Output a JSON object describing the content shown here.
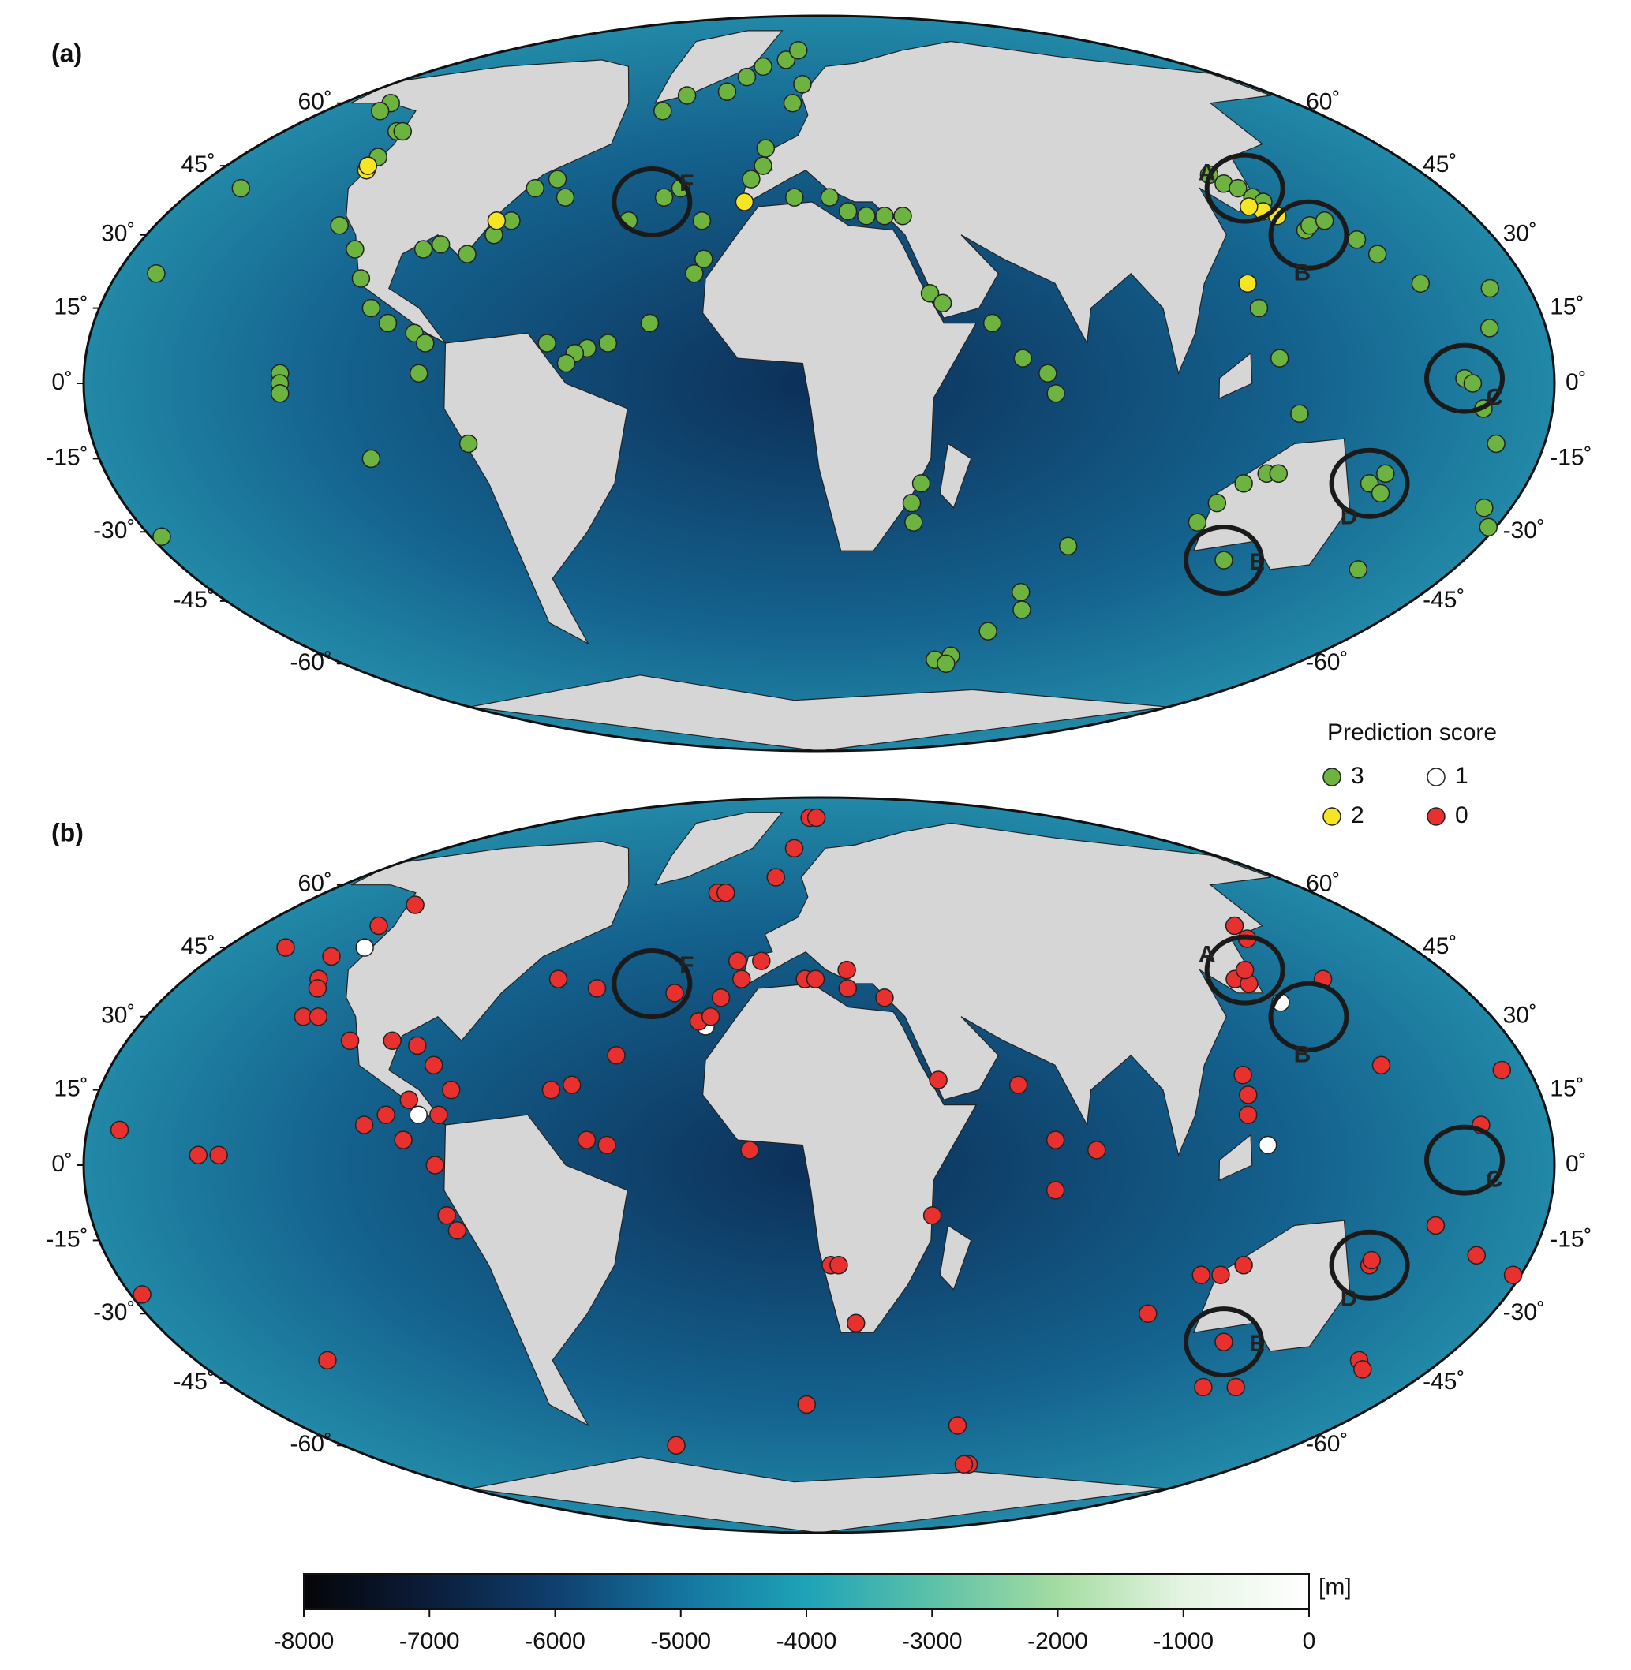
{
  "maps": [
    {
      "panel_label": "(a)",
      "sites": [
        {
          "score": 3,
          "coords": [
            [
              -150,
              60
            ],
            [
              -148,
              58
            ],
            [
              -130,
              53
            ],
            [
              -128,
              53
            ],
            [
              -125,
              47
            ],
            [
              -155,
              40
            ],
            [
              -158,
              22
            ],
            [
              -178,
              19
            ],
            [
              -118,
              32
            ],
            [
              -110,
              27
            ],
            [
              -105,
              21
            ],
            [
              -100,
              15
            ],
            [
              -95,
              12
            ],
            [
              -88,
              10
            ],
            [
              -85,
              8
            ],
            [
              -86,
              2
            ],
            [
              -120,
              2
            ],
            [
              -120,
              0
            ],
            [
              -120,
              -2
            ],
            [
              -75,
              -12
            ],
            [
              -100,
              -15
            ],
            [
              -175,
              -25
            ],
            [
              -170,
              -29
            ],
            [
              -165,
              -31
            ],
            [
              -92,
              27
            ],
            [
              -88,
              28
            ],
            [
              -80,
              26
            ],
            [
              -75,
              30
            ],
            [
              -72,
              33
            ],
            [
              -70,
              40
            ],
            [
              -65,
              42
            ],
            [
              -60,
              38
            ],
            [
              -40,
              33
            ],
            [
              -32,
              38
            ],
            [
              -28,
              40
            ],
            [
              -20,
              33
            ],
            [
              -18,
              25
            ],
            [
              -20,
              22
            ],
            [
              -30,
              12
            ],
            [
              -40,
              8
            ],
            [
              -45,
              7
            ],
            [
              -48,
              6
            ],
            [
              -50,
              4
            ],
            [
              -55,
              8
            ],
            [
              -45,
              58
            ],
            [
              -40,
              62
            ],
            [
              -25,
              63
            ],
            [
              -20,
              67
            ],
            [
              -15,
              70
            ],
            [
              -5,
              72
            ],
            [
              0,
              75
            ],
            [
              5,
              65
            ],
            [
              2,
              60
            ],
            [
              -5,
              45
            ],
            [
              -8,
              42
            ],
            [
              -5,
              49
            ],
            [
              5,
              38
            ],
            [
              15,
              38
            ],
            [
              20,
              35
            ],
            [
              25,
              34
            ],
            [
              30,
              34
            ],
            [
              35,
              34
            ],
            [
              40,
              18
            ],
            [
              43,
              16
            ],
            [
              55,
              12
            ],
            [
              62,
              5
            ],
            [
              68,
              2
            ],
            [
              70,
              -2
            ],
            [
              38,
              -20
            ],
            [
              36,
              -24
            ],
            [
              37,
              -28
            ],
            [
              80,
              -33
            ],
            [
              72,
              -43
            ],
            [
              75,
              -47
            ],
            [
              68,
              -52
            ],
            [
              60,
              -58
            ],
            [
              55,
              -59
            ],
            [
              60,
              -60
            ],
            [
              112,
              -28
            ],
            [
              115,
              -24
            ],
            [
              120,
              -20
            ],
            [
              125,
              -18
            ],
            [
              128,
              -18
            ],
            [
              125,
              -36
            ],
            [
              152,
              -20
            ],
            [
              155,
              -18
            ],
            [
              156,
              -22
            ],
            [
              165,
              -38
            ],
            [
              180,
              -12
            ],
            [
              175,
              -5
            ],
            [
              170,
              1
            ],
            [
              172,
              0
            ],
            [
              128,
              43
            ],
            [
              130,
              41
            ],
            [
              133,
              40
            ],
            [
              135,
              38
            ],
            [
              137,
              37
            ],
            [
              143,
              31
            ],
            [
              145,
              32
            ],
            [
              150,
              33
            ],
            [
              155,
              29
            ],
            [
              158,
              26
            ],
            [
              165,
              20
            ],
            [
              178,
              11
            ],
            [
              122,
              15
            ],
            [
              125,
              5
            ],
            [
              130,
              -6
            ]
          ]
        },
        {
          "score": 2,
          "coords": [
            [
              -124,
              44
            ],
            [
              -125,
              45
            ],
            [
              -76,
              33
            ],
            [
              -9,
              37
            ],
            [
              135,
              35
            ],
            [
              138,
              34
            ],
            [
              121,
              20
            ],
            [
              132,
              36
            ]
          ]
        }
      ]
    },
    {
      "panel_label": "(b)",
      "sites": [
        {
          "score": 1,
          "coords": [
            [
              -126,
              45
            ],
            [
              -87,
              10
            ],
            [
              -18,
              28
            ],
            [
              138,
              33
            ],
            [
              122,
              4
            ]
          ]
        },
        {
          "score": 0,
          "coords": [
            [
              -128,
              55
            ],
            [
              -130,
              50
            ],
            [
              -150,
              45
            ],
            [
              -133,
              43
            ],
            [
              -130,
              38
            ],
            [
              -128,
              36
            ],
            [
              -126,
              30
            ],
            [
              -122,
              30
            ],
            [
              -110,
              25
            ],
            [
              -99,
              25
            ],
            [
              -92,
              24
            ],
            [
              -86,
              20
            ],
            [
              -80,
              15
            ],
            [
              -82,
              10
            ],
            [
              -90,
              13
            ],
            [
              -95,
              10
            ],
            [
              -100,
              8
            ],
            [
              -90,
              5
            ],
            [
              -82,
              0
            ],
            [
              -80,
              -10
            ],
            [
              -78,
              -13
            ],
            [
              -135,
              2
            ],
            [
              -140,
              2
            ],
            [
              -160,
              7
            ],
            [
              -175,
              19
            ],
            [
              -170,
              -22
            ],
            [
              -165,
              -26
            ],
            [
              -130,
              -40
            ],
            [
              -62,
              38
            ],
            [
              -50,
              36
            ],
            [
              -40,
              22
            ],
            [
              -28,
              35
            ],
            [
              -20,
              29
            ],
            [
              -17,
              30
            ],
            [
              -15,
              34
            ],
            [
              -10,
              38
            ],
            [
              -12,
              42
            ],
            [
              -5,
              42
            ],
            [
              -25,
              58
            ],
            [
              -22,
              58
            ],
            [
              -5,
              62
            ],
            [
              0,
              70
            ],
            [
              5,
              80
            ],
            [
              10,
              80
            ],
            [
              -55,
              15
            ],
            [
              -50,
              16
            ],
            [
              -45,
              5
            ],
            [
              -40,
              4
            ],
            [
              -5,
              3
            ],
            [
              15,
              -20
            ],
            [
              17,
              -20
            ],
            [
              22,
              -32
            ],
            [
              8,
              -50
            ],
            [
              -42,
              -60
            ],
            [
              8,
              38
            ],
            [
              11,
              38
            ],
            [
              20,
              40
            ],
            [
              20,
              36
            ],
            [
              30,
              34
            ],
            [
              42,
              17
            ],
            [
              40,
              -10
            ],
            [
              70,
              -5
            ],
            [
              62,
              16
            ],
            [
              70,
              5
            ],
            [
              80,
              3
            ],
            [
              60,
              -55
            ],
            [
              110,
              -22
            ],
            [
              115,
              -22
            ],
            [
              120,
              -20
            ],
            [
              100,
              -30
            ],
            [
              125,
              -36
            ],
            [
              130,
              -46
            ],
            [
              140,
              -46
            ],
            [
              118,
              10
            ],
            [
              119,
              14
            ],
            [
              119,
              18
            ],
            [
              130,
              38
            ],
            [
              133,
              37
            ],
            [
              135,
              40
            ],
            [
              145,
              47
            ],
            [
              146,
              50
            ],
            [
              155,
              38
            ],
            [
              155,
              20
            ],
            [
              165,
              -12
            ],
            [
              152,
              -20
            ],
            [
              152,
              -19
            ],
            [
              168,
              -40
            ],
            [
              172,
              -42
            ],
            [
              178,
              -18
            ],
            [
              175,
              8
            ],
            [
              75,
              -65
            ],
            [
              73,
              -65
            ]
          ]
        }
      ]
    }
  ],
  "annotations": [
    {
      "label": "A",
      "lon": 135,
      "lat": 40
    },
    {
      "label": "B",
      "lon": 143,
      "lat": 30
    },
    {
      "label": "C",
      "lon": 170,
      "lat": 1
    },
    {
      "label": "D",
      "lon": 152,
      "lat": -20
    },
    {
      "label": "E",
      "lon": 125,
      "lat": -36
    },
    {
      "label": "F",
      "lon": -35,
      "lat": 37
    }
  ],
  "lat_ticks": [
    {
      "value": 60,
      "label": "60˚"
    },
    {
      "value": 45,
      "label": "45˚"
    },
    {
      "value": 30,
      "label": "30˚"
    },
    {
      "value": 15,
      "label": "15˚"
    },
    {
      "value": 0,
      "label": "0˚"
    },
    {
      "value": -15,
      "label": "-15˚"
    },
    {
      "value": -30,
      "label": "-30˚"
    },
    {
      "value": -45,
      "label": "-45˚"
    },
    {
      "value": -60,
      "label": "-60˚"
    }
  ],
  "legend": {
    "title": "Prediction score",
    "entries": [
      {
        "score": 3,
        "color": "#6cb33f"
      },
      {
        "score": 2,
        "color": "#f5e524"
      },
      {
        "score": 1,
        "color": "#ffffff"
      },
      {
        "score": 0,
        "color": "#e8312f"
      }
    ]
  },
  "colorbar": {
    "unit": "[m]",
    "lim": [
      -8000,
      0
    ],
    "ticks": [
      -8000,
      -7000,
      -6000,
      -5000,
      -4000,
      -3000,
      -2000,
      -1000,
      0
    ],
    "colors": [
      "#050508",
      "#0b1d3a",
      "#0f3f6e",
      "#15749f",
      "#1ea3b8",
      "#5cc1a8",
      "#a4dca2",
      "#e4f4e2",
      "#ffffff"
    ]
  }
}
